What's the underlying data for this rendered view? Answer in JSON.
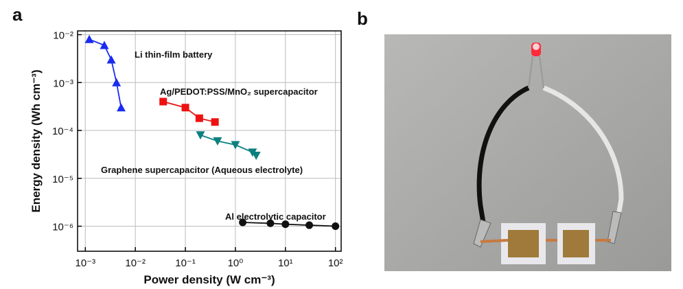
{
  "figure": {
    "panel_a": "a",
    "panel_b": "b"
  },
  "chart_data": {
    "type": "scatter-line",
    "xlabel": "Power density (W cm⁻³)",
    "ylabel": "Energy density (Wh cm⁻³)",
    "xscale": "log",
    "yscale": "log",
    "grid": true,
    "xlim": [
      0.0007,
      130
    ],
    "ylim": [
      3e-07,
      0.012
    ],
    "xticks": [
      {
        "value": 0.001,
        "label": "10⁻³"
      },
      {
        "value": 0.01,
        "label": "10⁻²"
      },
      {
        "value": 0.1,
        "label": "10⁻¹"
      },
      {
        "value": 1,
        "label": "10⁰"
      },
      {
        "value": 10,
        "label": "10¹"
      },
      {
        "value": 100,
        "label": "10²"
      }
    ],
    "yticks": [
      {
        "value": 1e-06,
        "label": "10⁻⁶"
      },
      {
        "value": 1e-05,
        "label": "10⁻⁵"
      },
      {
        "value": 0.0001,
        "label": "10⁻⁴"
      },
      {
        "value": 0.001,
        "label": "10⁻³"
      },
      {
        "value": 0.01,
        "label": "10⁻²"
      }
    ],
    "series": [
      {
        "name": "Li thin-film battery",
        "color": "#1a2cf0",
        "marker": "triangle-up",
        "x": [
          0.0012,
          0.0024,
          0.0033,
          0.0042,
          0.0052
        ],
        "y": [
          0.008,
          0.006,
          0.003,
          0.001,
          0.0003
        ]
      },
      {
        "name": "Ag/PEDOT:PSS/MnO₂ supercapacitor",
        "color": "#ee1111",
        "marker": "square",
        "x": [
          0.036,
          0.1,
          0.19,
          0.39
        ],
        "y": [
          0.0004,
          0.0003,
          0.00018,
          0.00015
        ]
      },
      {
        "name": "Graphene supercapacitor (Aqueous electrolyte)",
        "color": "#0b8080",
        "marker": "triangle-down",
        "x": [
          0.2,
          0.44,
          1,
          2.2,
          2.6
        ],
        "y": [
          8e-05,
          6e-05,
          5e-05,
          3.5e-05,
          3e-05
        ]
      },
      {
        "name": "Al electrolytic capacitor",
        "color": "#111111",
        "marker": "circle",
        "x": [
          1.4,
          5,
          10,
          30,
          100
        ],
        "y": [
          1.2e-06,
          1.15e-06,
          1.1e-06,
          1.05e-06,
          1e-06
        ]
      }
    ]
  }
}
